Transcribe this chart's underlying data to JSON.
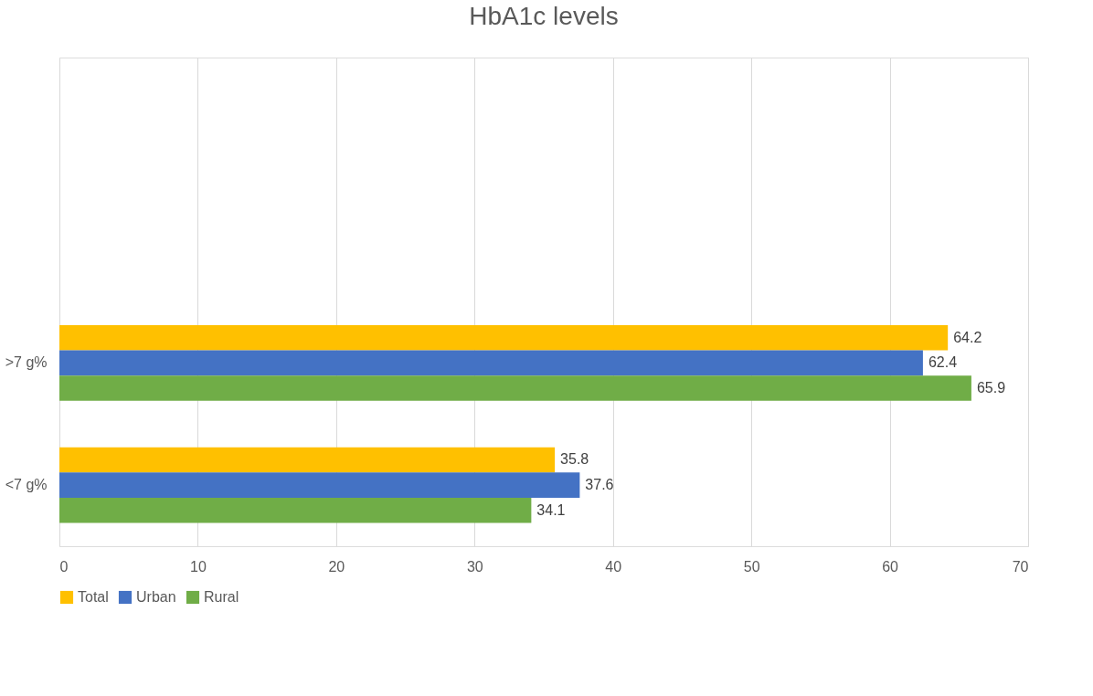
{
  "chart_data": {
    "type": "bar",
    "orientation": "horizontal",
    "title": "HbA1c levels",
    "categories": [
      null,
      null,
      ">7 g%",
      "<7 g%"
    ],
    "series": [
      {
        "name": "Total",
        "color": "#ffc000",
        "values": [
          null,
          null,
          64.2,
          35.8
        ]
      },
      {
        "name": "Urban",
        "color": "#4472c4",
        "values": [
          null,
          null,
          62.4,
          37.6
        ]
      },
      {
        "name": "Rural",
        "color": "#70ad47",
        "values": [
          null,
          null,
          65.9,
          34.1
        ]
      }
    ],
    "xlim": [
      0,
      70
    ],
    "xticks": [
      0,
      10,
      20,
      30,
      40,
      50,
      60,
      70
    ],
    "grid": "x",
    "legend": "bottom",
    "data_labels": true
  }
}
